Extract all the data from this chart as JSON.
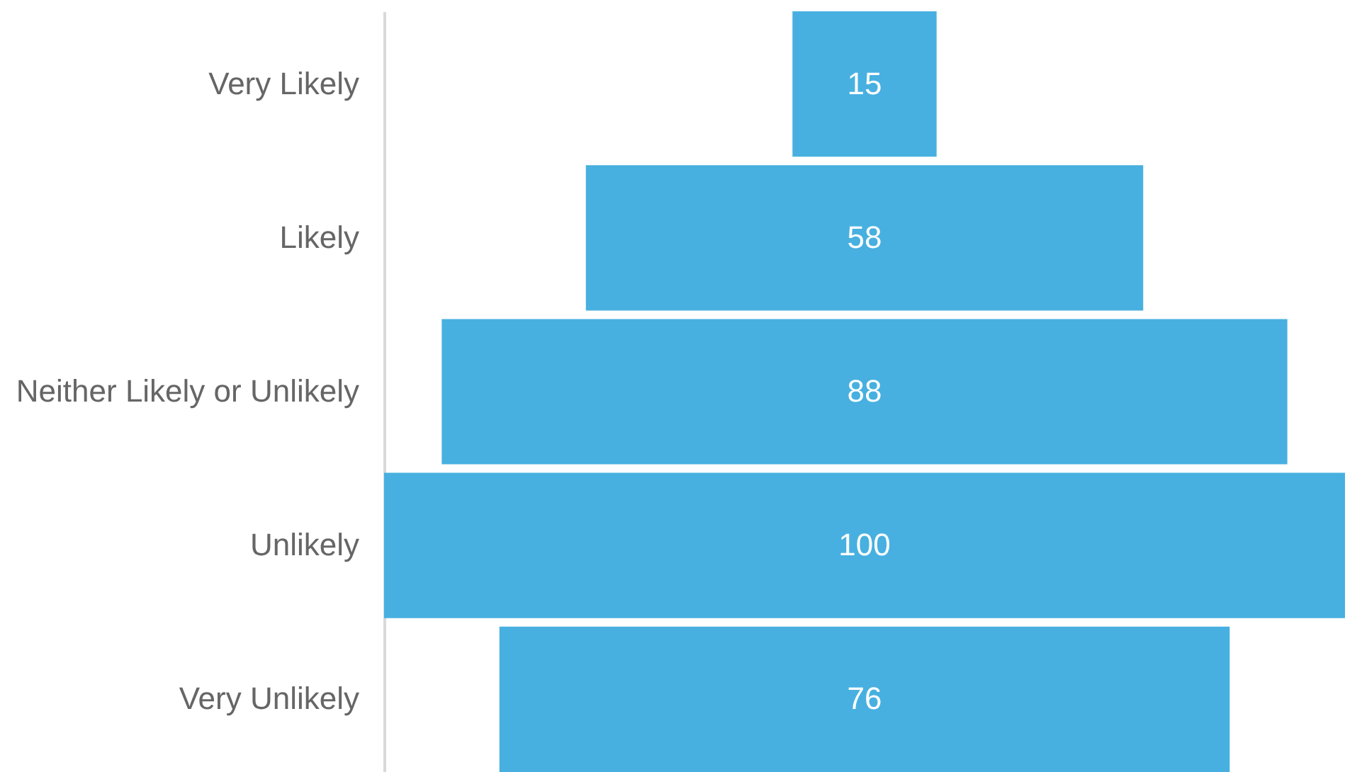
{
  "chart_data": {
    "type": "other",
    "categories": [
      "Very Likely",
      "Likely",
      "Neither Likely or Unlikely",
      "Unlikely",
      "Very Unlikely"
    ],
    "values": [
      15,
      58,
      88,
      100,
      76
    ],
    "color": "#47b0e0",
    "data_labels": true
  }
}
